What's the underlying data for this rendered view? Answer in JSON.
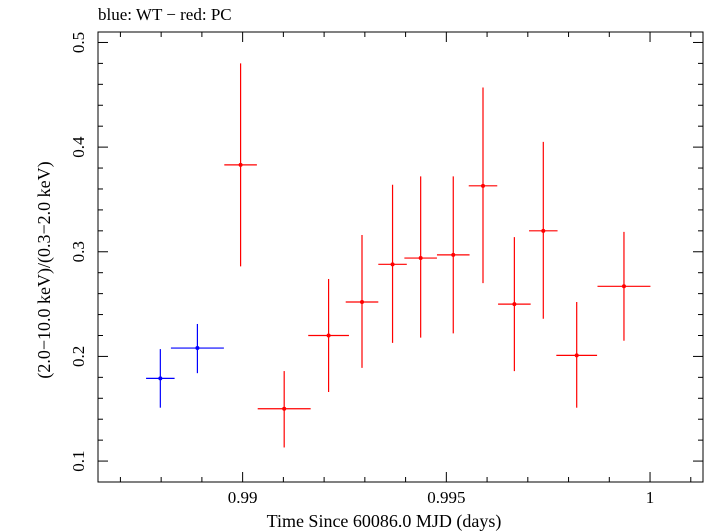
{
  "chart_data": {
    "type": "scatter",
    "title": "blue: WT − red: PC",
    "xlabel": "Time Since 60086.0 MJD (days)",
    "ylabel": "(2.0−10.0 keV)/(0.3−2.0 keV)",
    "xlim": [
      0.98645,
      1.0013
    ],
    "ylim": [
      0.08,
      0.51
    ],
    "xticks": [
      0.99,
      0.995,
      1
    ],
    "xtick_labels": [
      "0.99",
      "0.995",
      "1"
    ],
    "yticks": [
      0.1,
      0.2,
      0.3,
      0.4,
      0.5
    ],
    "ytick_labels": [
      "0.1",
      "0.2",
      "0.3",
      "0.4",
      "0.5"
    ],
    "grid": false,
    "series": [
      {
        "name": "WT",
        "color": "#0000ff",
        "points": [
          {
            "x": 0.98798,
            "xerr": 0.00035,
            "y": 0.179,
            "ylo": 0.151,
            "yhi": 0.207
          },
          {
            "x": 0.98889,
            "xerr": 0.00065,
            "y": 0.208,
            "ylo": 0.184,
            "yhi": 0.231
          }
        ]
      },
      {
        "name": "PC",
        "color": "#ff0000",
        "points": [
          {
            "x": 0.98995,
            "xerr": 0.0004,
            "y": 0.383,
            "ylo": 0.286,
            "yhi": 0.48
          },
          {
            "x": 0.99102,
            "xerr": 0.00065,
            "y": 0.15,
            "ylo": 0.113,
            "yhi": 0.186
          },
          {
            "x": 0.99211,
            "xerr": 0.0005,
            "y": 0.22,
            "ylo": 0.166,
            "yhi": 0.274
          },
          {
            "x": 0.99293,
            "xerr": 0.0004,
            "y": 0.252,
            "ylo": 0.189,
            "yhi": 0.316
          },
          {
            "x": 0.99368,
            "xerr": 0.00035,
            "y": 0.288,
            "ylo": 0.213,
            "yhi": 0.364
          },
          {
            "x": 0.99437,
            "xerr": 0.0004,
            "y": 0.294,
            "ylo": 0.218,
            "yhi": 0.372
          },
          {
            "x": 0.99517,
            "xerr": 0.0004,
            "y": 0.297,
            "ylo": 0.222,
            "yhi": 0.372
          },
          {
            "x": 0.9959,
            "xerr": 0.00035,
            "y": 0.363,
            "ylo": 0.27,
            "yhi": 0.457
          },
          {
            "x": 0.99667,
            "xerr": 0.0004,
            "y": 0.25,
            "ylo": 0.186,
            "yhi": 0.314
          },
          {
            "x": 0.99738,
            "xerr": 0.00035,
            "y": 0.32,
            "ylo": 0.236,
            "yhi": 0.405
          },
          {
            "x": 0.9982,
            "xerr": 0.0005,
            "y": 0.201,
            "ylo": 0.151,
            "yhi": 0.252
          },
          {
            "x": 0.99936,
            "xerr": 0.00065,
            "y": 0.267,
            "ylo": 0.215,
            "yhi": 0.319
          }
        ]
      }
    ]
  }
}
